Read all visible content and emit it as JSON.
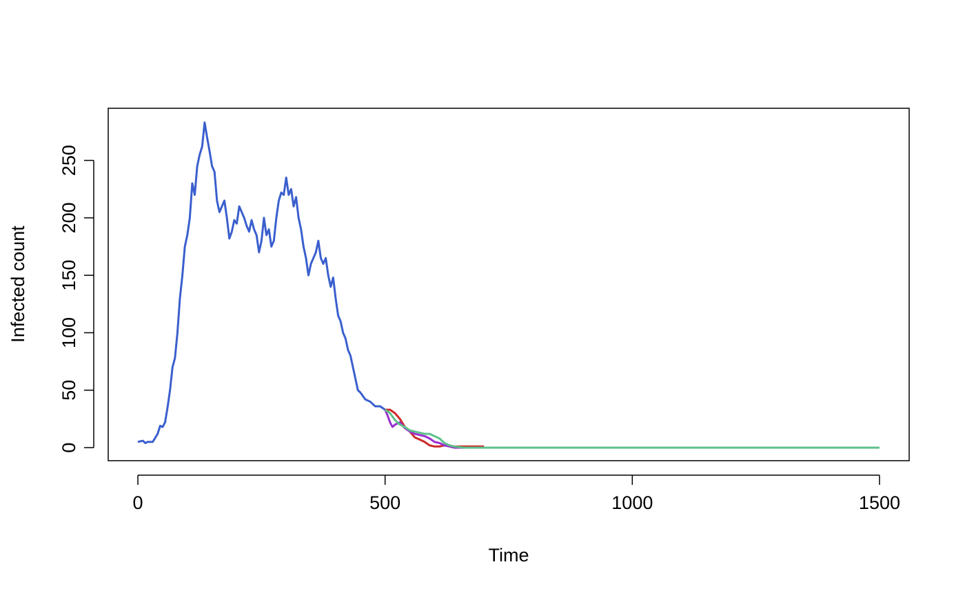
{
  "chart_data": {
    "type": "line",
    "xlabel": "Time",
    "ylabel": "Infected count",
    "xlim": [
      -60,
      1560
    ],
    "ylim": [
      -11.36,
      295.36
    ],
    "xticks": [
      0,
      500,
      1000,
      1500
    ],
    "yticks": [
      0,
      50,
      100,
      150,
      200,
      250
    ],
    "series": [
      {
        "color": "#3a5fcd",
        "x": [
          0,
          10,
          15,
          20,
          30,
          40,
          45,
          50,
          55,
          60,
          65,
          70,
          75,
          80,
          85,
          90,
          95,
          100,
          105,
          110,
          115,
          120,
          125,
          130,
          135,
          140,
          145,
          150,
          155,
          160,
          165,
          170,
          175,
          180,
          185,
          190,
          195,
          200,
          205,
          210,
          215,
          220,
          225,
          230,
          235,
          240,
          245,
          250,
          255,
          260,
          265,
          270,
          275,
          280,
          285,
          290,
          295,
          300,
          305,
          310,
          315,
          320,
          325,
          330,
          335,
          340,
          345,
          350,
          355,
          360,
          365,
          370,
          375,
          380,
          385,
          390,
          395,
          400,
          405,
          410,
          415,
          420,
          425,
          430,
          435,
          440,
          445,
          450,
          455,
          460,
          470,
          480,
          490,
          500
        ],
        "values": [
          5,
          6,
          4,
          5,
          5,
          12,
          19,
          18,
          22,
          35,
          50,
          70,
          78,
          100,
          130,
          150,
          175,
          185,
          200,
          230,
          220,
          245,
          255,
          262,
          283,
          270,
          258,
          245,
          240,
          215,
          205,
          210,
          215,
          200,
          182,
          188,
          198,
          195,
          210,
          205,
          200,
          193,
          188,
          198,
          190,
          185,
          170,
          180,
          200,
          185,
          190,
          175,
          180,
          200,
          215,
          222,
          220,
          235,
          220,
          225,
          210,
          218,
          200,
          190,
          175,
          165,
          150,
          160,
          165,
          170,
          180,
          165,
          160,
          165,
          150,
          140,
          148,
          130,
          115,
          110,
          100,
          95,
          85,
          80,
          70,
          60,
          50,
          48,
          45,
          42,
          40,
          36,
          36,
          33
        ]
      },
      {
        "color": "#cc2a2a",
        "x": [
          500,
          510,
          520,
          530,
          540,
          550,
          560,
          570,
          580,
          590,
          600,
          610,
          620,
          630,
          640,
          650,
          660,
          670,
          680,
          690,
          700
        ],
        "values": [
          33,
          33,
          30,
          25,
          18,
          14,
          9,
          7,
          5,
          2,
          1,
          1,
          2,
          2,
          1,
          1,
          1,
          1,
          1,
          1,
          1
        ]
      },
      {
        "color": "#9b30d0",
        "x": [
          500,
          505,
          510,
          515,
          520,
          530,
          540,
          550,
          560,
          570,
          580,
          590,
          600,
          610,
          620,
          630,
          640,
          660
        ],
        "values": [
          33,
          28,
          22,
          18,
          20,
          22,
          17,
          14,
          12,
          11,
          10,
          8,
          5,
          4,
          2,
          1,
          0,
          0
        ]
      },
      {
        "color": "#5ec08a",
        "x": [
          500,
          510,
          520,
          530,
          540,
          550,
          560,
          570,
          580,
          590,
          600,
          610,
          620,
          630,
          640,
          660,
          1500
        ],
        "values": [
          33,
          30,
          24,
          20,
          18,
          15,
          14,
          13,
          12,
          12,
          10,
          8,
          4,
          2,
          1,
          0,
          0
        ]
      }
    ]
  }
}
